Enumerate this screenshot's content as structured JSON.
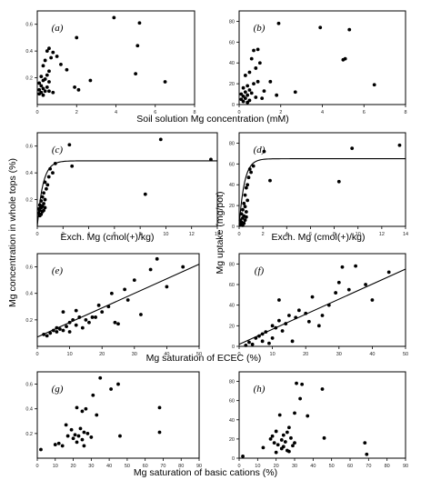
{
  "figure": {
    "xtitle_row1": "Soil solution Mg concentration (mM)",
    "xtitle_row2": "Exch. Mg (cmol(+)/kg)",
    "xtitle_row3": "Mg saturation of ECEC (%)",
    "xtitle_row4": "Mg saturation of basic cations (%)",
    "ytitle_left": "Mg concentration in whole tops (%)",
    "ytitle_right": "Mg uptake (mg/pot)"
  },
  "chart_data": [
    {
      "panel": "(a)",
      "type": "scatter",
      "xlim": [
        0,
        8
      ],
      "xticks": [
        "0",
        "2",
        "4",
        "6",
        "8"
      ],
      "ylim": [
        0,
        0.7
      ],
      "yticks": [
        "0.2",
        "0.4",
        "0.6"
      ],
      "points": [
        [
          3.9,
          0.65
        ],
        [
          5.2,
          0.61
        ],
        [
          5.1,
          0.44
        ],
        [
          6.5,
          0.17
        ],
        [
          5.0,
          0.23
        ],
        [
          2.7,
          0.18
        ],
        [
          1.9,
          0.13
        ],
        [
          2.1,
          0.11
        ],
        [
          2.0,
          0.5
        ],
        [
          1.5,
          0.26
        ],
        [
          1.2,
          0.3
        ],
        [
          1.0,
          0.36
        ],
        [
          0.8,
          0.39
        ],
        [
          0.6,
          0.42
        ],
        [
          0.5,
          0.4
        ],
        [
          0.7,
          0.35
        ],
        [
          0.4,
          0.33
        ],
        [
          0.3,
          0.29
        ],
        [
          0.6,
          0.25
        ],
        [
          0.5,
          0.22
        ],
        [
          0.2,
          0.21
        ],
        [
          0.4,
          0.19
        ],
        [
          0.3,
          0.18
        ],
        [
          0.6,
          0.17
        ],
        [
          0.1,
          0.16
        ],
        [
          0.2,
          0.14
        ],
        [
          0.5,
          0.13
        ],
        [
          0.3,
          0.12
        ],
        [
          0.1,
          0.11
        ],
        [
          0.4,
          0.1
        ],
        [
          0.6,
          0.1
        ],
        [
          0.2,
          0.09
        ],
        [
          0.1,
          0.08
        ],
        [
          0.3,
          0.07
        ],
        [
          0.8,
          0.09
        ]
      ]
    },
    {
      "panel": "(b)",
      "type": "scatter",
      "xlim": [
        0,
        8
      ],
      "xticks": [
        "0",
        "2",
        "4",
        "6",
        "8"
      ],
      "ylim": [
        0,
        90
      ],
      "yticks": [
        "0",
        "20",
        "40",
        "60",
        "80"
      ],
      "points": [
        [
          1.9,
          78
        ],
        [
          3.9,
          74
        ],
        [
          5.3,
          72
        ],
        [
          5.1,
          44
        ],
        [
          5.0,
          43
        ],
        [
          6.5,
          19
        ],
        [
          2.7,
          12
        ],
        [
          1.8,
          9
        ],
        [
          1.5,
          22
        ],
        [
          0.9,
          53
        ],
        [
          0.7,
          52
        ],
        [
          0.6,
          44
        ],
        [
          1.0,
          40
        ],
        [
          0.8,
          35
        ],
        [
          0.5,
          31
        ],
        [
          0.3,
          28
        ],
        [
          0.9,
          22
        ],
        [
          0.7,
          20
        ],
        [
          0.4,
          18
        ],
        [
          0.2,
          16
        ],
        [
          0.5,
          14
        ],
        [
          0.3,
          12
        ],
        [
          0.6,
          11
        ],
        [
          0.1,
          10
        ],
        [
          0.4,
          9
        ],
        [
          0.2,
          8
        ],
        [
          0.8,
          7
        ],
        [
          0.3,
          6
        ],
        [
          0.1,
          5
        ],
        [
          0.5,
          4
        ],
        [
          0.2,
          3
        ],
        [
          0.4,
          2
        ],
        [
          1.2,
          13
        ],
        [
          1.1,
          6
        ]
      ]
    },
    {
      "panel": "(c)",
      "type": "scatter",
      "xlim": [
        0,
        14
      ],
      "xticks": [
        "0",
        "2",
        "4",
        "6",
        "8",
        "10",
        "12",
        "14"
      ],
      "ylim": [
        0,
        0.7
      ],
      "yticks": [
        "0.2",
        "0.4",
        "0.6"
      ],
      "curve": {
        "kind": "saturating",
        "ymax": 0.49,
        "rate": 2.3
      },
      "points": [
        [
          9.6,
          0.65
        ],
        [
          2.5,
          0.61
        ],
        [
          13.5,
          0.5
        ],
        [
          8.4,
          0.24
        ],
        [
          2.7,
          0.45
        ],
        [
          1.4,
          0.47
        ],
        [
          1.2,
          0.4
        ],
        [
          1.0,
          0.43
        ],
        [
          0.9,
          0.37
        ],
        [
          0.8,
          0.31
        ],
        [
          0.6,
          0.33
        ],
        [
          0.7,
          0.28
        ],
        [
          0.5,
          0.25
        ],
        [
          0.4,
          0.22
        ],
        [
          0.6,
          0.2
        ],
        [
          0.3,
          0.19
        ],
        [
          0.5,
          0.17
        ],
        [
          0.2,
          0.16
        ],
        [
          0.4,
          0.15
        ],
        [
          0.3,
          0.14
        ],
        [
          0.1,
          0.13
        ],
        [
          0.2,
          0.12
        ],
        [
          0.4,
          0.11
        ],
        [
          0.1,
          0.1
        ],
        [
          0.3,
          0.09
        ],
        [
          0.2,
          0.08
        ],
        [
          0.5,
          0.12
        ],
        [
          0.6,
          0.14
        ]
      ]
    },
    {
      "panel": "(d)",
      "type": "scatter",
      "xlim": [
        0,
        14
      ],
      "xticks": [
        "0",
        "2",
        "4",
        "6",
        "8",
        "10",
        "12",
        "14"
      ],
      "ylim": [
        0,
        90
      ],
      "yticks": [
        "0",
        "20",
        "40",
        "60",
        "80"
      ],
      "curve": {
        "kind": "saturating",
        "ymax": 65,
        "rate": 2.3
      },
      "points": [
        [
          13.5,
          78
        ],
        [
          9.5,
          75
        ],
        [
          2.1,
          72
        ],
        [
          8.4,
          43
        ],
        [
          2.6,
          44
        ],
        [
          1.2,
          58
        ],
        [
          1.0,
          52
        ],
        [
          0.9,
          55
        ],
        [
          0.8,
          47
        ],
        [
          0.7,
          40
        ],
        [
          0.6,
          37
        ],
        [
          0.5,
          30
        ],
        [
          0.7,
          25
        ],
        [
          0.4,
          22
        ],
        [
          0.5,
          19
        ],
        [
          0.3,
          16
        ],
        [
          0.6,
          14
        ],
        [
          0.2,
          12
        ],
        [
          0.4,
          10
        ],
        [
          0.3,
          8
        ],
        [
          0.1,
          6
        ],
        [
          0.2,
          4
        ],
        [
          0.4,
          3
        ],
        [
          0.1,
          2
        ],
        [
          0.3,
          1
        ],
        [
          0.5,
          6
        ],
        [
          0.6,
          9
        ]
      ]
    },
    {
      "panel": "(e)",
      "type": "scatter",
      "xlim": [
        0,
        50
      ],
      "xticks": [
        "0",
        "10",
        "20",
        "30",
        "40",
        "50"
      ],
      "ylim": [
        0,
        0.7
      ],
      "yticks": [
        "0.2",
        "0.4",
        "0.6"
      ],
      "fit_line": {
        "x": [
          0,
          50
        ],
        "y": [
          0.07,
          0.62
        ]
      },
      "points": [
        [
          2,
          0.09
        ],
        [
          3,
          0.08
        ],
        [
          4,
          0.1
        ],
        [
          5,
          0.12
        ],
        [
          6,
          0.11
        ],
        [
          6,
          0.14
        ],
        [
          7,
          0.13
        ],
        [
          8,
          0.12
        ],
        [
          8,
          0.26
        ],
        [
          9,
          0.15
        ],
        [
          10,
          0.18
        ],
        [
          10,
          0.11
        ],
        [
          11,
          0.2
        ],
        [
          12,
          0.16
        ],
        [
          12,
          0.27
        ],
        [
          13,
          0.22
        ],
        [
          14,
          0.14
        ],
        [
          15,
          0.2
        ],
        [
          16,
          0.18
        ],
        [
          17,
          0.22
        ],
        [
          18,
          0.22
        ],
        [
          19,
          0.31
        ],
        [
          20,
          0.26
        ],
        [
          22,
          0.3
        ],
        [
          23,
          0.4
        ],
        [
          24,
          0.18
        ],
        [
          25,
          0.17
        ],
        [
          27,
          0.43
        ],
        [
          28,
          0.35
        ],
        [
          30,
          0.5
        ],
        [
          32,
          0.24
        ],
        [
          35,
          0.58
        ],
        [
          37,
          0.66
        ],
        [
          40,
          0.45
        ],
        [
          45,
          0.6
        ]
      ]
    },
    {
      "panel": "(f)",
      "type": "scatter",
      "xlim": [
        0,
        50
      ],
      "xticks": [
        "0",
        "10",
        "20",
        "30",
        "40",
        "50"
      ],
      "ylim": [
        0,
        90
      ],
      "yticks": [
        "0",
        "20",
        "40",
        "60",
        "80"
      ],
      "fit_line": {
        "x": [
          0,
          50
        ],
        "y": [
          2,
          75
        ]
      },
      "points": [
        [
          2,
          1
        ],
        [
          3,
          4
        ],
        [
          4,
          2
        ],
        [
          5,
          8
        ],
        [
          6,
          10
        ],
        [
          7,
          12
        ],
        [
          7,
          5
        ],
        [
          8,
          14
        ],
        [
          9,
          3
        ],
        [
          10,
          8
        ],
        [
          10,
          20
        ],
        [
          11,
          18
        ],
        [
          12,
          45
        ],
        [
          12,
          25
        ],
        [
          13,
          15
        ],
        [
          14,
          22
        ],
        [
          15,
          30
        ],
        [
          16,
          5
        ],
        [
          17,
          28
        ],
        [
          18,
          35
        ],
        [
          20,
          32
        ],
        [
          21,
          24
        ],
        [
          22,
          48
        ],
        [
          24,
          20
        ],
        [
          25,
          30
        ],
        [
          27,
          40
        ],
        [
          29,
          52
        ],
        [
          30,
          62
        ],
        [
          31,
          77
        ],
        [
          33,
          55
        ],
        [
          35,
          78
        ],
        [
          38,
          60
        ],
        [
          40,
          45
        ],
        [
          45,
          72
        ]
      ]
    },
    {
      "panel": "(g)",
      "type": "scatter",
      "xlim": [
        0,
        90
      ],
      "xticks": [
        "0",
        "10",
        "20",
        "30",
        "40",
        "50",
        "60",
        "70",
        "80",
        "90"
      ],
      "ylim": [
        0,
        0.7
      ],
      "yticks": [
        "0.2",
        "0.4",
        "0.6"
      ],
      "points": [
        [
          35,
          0.65
        ],
        [
          45,
          0.6
        ],
        [
          41,
          0.56
        ],
        [
          31,
          0.51
        ],
        [
          68,
          0.41
        ],
        [
          22,
          0.41
        ],
        [
          27,
          0.4
        ],
        [
          25,
          0.38
        ],
        [
          33,
          0.35
        ],
        [
          16,
          0.27
        ],
        [
          19,
          0.23
        ],
        [
          24,
          0.24
        ],
        [
          26,
          0.21
        ],
        [
          21,
          0.19
        ],
        [
          28,
          0.2
        ],
        [
          23,
          0.18
        ],
        [
          17,
          0.18
        ],
        [
          20,
          0.16
        ],
        [
          30,
          0.17
        ],
        [
          25,
          0.15
        ],
        [
          22,
          0.13
        ],
        [
          12,
          0.12
        ],
        [
          14,
          0.1
        ],
        [
          26,
          0.1
        ],
        [
          46,
          0.18
        ],
        [
          68,
          0.21
        ],
        [
          2,
          0.07
        ],
        [
          10,
          0.11
        ]
      ]
    },
    {
      "panel": "(h)",
      "type": "scatter",
      "xlim": [
        0,
        90
      ],
      "xticks": [
        "0",
        "10",
        "20",
        "30",
        "40",
        "50",
        "60",
        "70",
        "80",
        "90"
      ],
      "ylim": [
        0,
        90
      ],
      "yticks": [
        "0",
        "20",
        "40",
        "60",
        "80"
      ],
      "points": [
        [
          31,
          78
        ],
        [
          34,
          77
        ],
        [
          45,
          72
        ],
        [
          33,
          62
        ],
        [
          30,
          47
        ],
        [
          22,
          45
        ],
        [
          37,
          44
        ],
        [
          27,
          32
        ],
        [
          20,
          28
        ],
        [
          26,
          27
        ],
        [
          24,
          24
        ],
        [
          18,
          23
        ],
        [
          28,
          21
        ],
        [
          17,
          20
        ],
        [
          46,
          21
        ],
        [
          23,
          19
        ],
        [
          25,
          17
        ],
        [
          19,
          16
        ],
        [
          30,
          16
        ],
        [
          21,
          14
        ],
        [
          29,
          13
        ],
        [
          24,
          12
        ],
        [
          13,
          11
        ],
        [
          23,
          10
        ],
        [
          26,
          8
        ],
        [
          27,
          7
        ],
        [
          20,
          6
        ],
        [
          68,
          16
        ],
        [
          69,
          4
        ],
        [
          2,
          2
        ]
      ]
    }
  ]
}
